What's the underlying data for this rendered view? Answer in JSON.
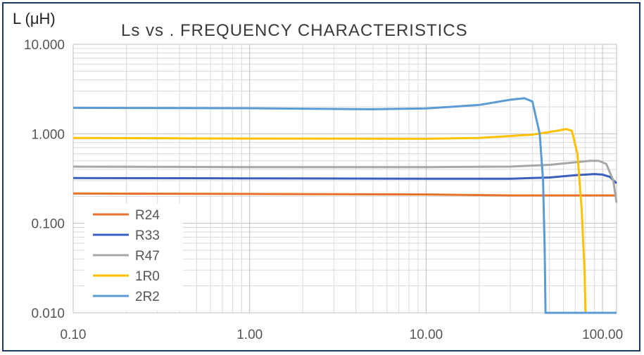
{
  "chart_data": {
    "type": "line",
    "title": "Ls vs . FREQUENCY CHARACTERISTICS",
    "ylabel": "L (μH)",
    "xlabel": "",
    "x_scale": "log",
    "y_scale": "log",
    "xlim": [
      0.1,
      120
    ],
    "ylim": [
      0.01,
      10
    ],
    "x_ticks": [
      "0.10",
      "1.00",
      "10.00",
      "100.00"
    ],
    "y_ticks": [
      "10.000",
      "1.000",
      "0.100",
      "0.010"
    ],
    "grid": true,
    "legend_position": "bottom-left",
    "series": [
      {
        "name": "R24",
        "color": "#e8722c",
        "points": [
          [
            0.1,
            0.215
          ],
          [
            1,
            0.213
          ],
          [
            10,
            0.21
          ],
          [
            30,
            0.205
          ],
          [
            60,
            0.205
          ],
          [
            100,
            0.205
          ],
          [
            120,
            0.205
          ]
        ]
      },
      {
        "name": "R33",
        "color": "#3a5fbf",
        "points": [
          [
            0.1,
            0.32
          ],
          [
            1,
            0.318
          ],
          [
            10,
            0.315
          ],
          [
            30,
            0.315
          ],
          [
            50,
            0.325
          ],
          [
            70,
            0.345
          ],
          [
            90,
            0.355
          ],
          [
            100,
            0.35
          ],
          [
            110,
            0.33
          ],
          [
            120,
            0.28
          ]
        ]
      },
      {
        "name": "R47",
        "color": "#a6a6a6",
        "points": [
          [
            0.1,
            0.43
          ],
          [
            1,
            0.425
          ],
          [
            10,
            0.425
          ],
          [
            30,
            0.43
          ],
          [
            50,
            0.45
          ],
          [
            70,
            0.48
          ],
          [
            85,
            0.5
          ],
          [
            95,
            0.5
          ],
          [
            105,
            0.46
          ],
          [
            115,
            0.3
          ],
          [
            120,
            0.17
          ]
        ]
      },
      {
        "name": "1R0",
        "color": "#ffc000",
        "points": [
          [
            0.1,
            0.9
          ],
          [
            1,
            0.885
          ],
          [
            10,
            0.88
          ],
          [
            20,
            0.9
          ],
          [
            40,
            0.98
          ],
          [
            55,
            1.08
          ],
          [
            62,
            1.13
          ],
          [
            67,
            1.08
          ],
          [
            72,
            0.6
          ],
          [
            76,
            0.15
          ],
          [
            79,
            0.03
          ],
          [
            80,
            0.01
          ],
          [
            120,
            0.01
          ]
        ]
      },
      {
        "name": "2R2",
        "color": "#5b9bd5",
        "points": [
          [
            0.1,
            1.95
          ],
          [
            1,
            1.93
          ],
          [
            5,
            1.88
          ],
          [
            10,
            1.92
          ],
          [
            20,
            2.1
          ],
          [
            30,
            2.4
          ],
          [
            36,
            2.5
          ],
          [
            40,
            2.3
          ],
          [
            44,
            1.0
          ],
          [
            46,
            0.3
          ],
          [
            47,
            0.05
          ],
          [
            47.5,
            0.01
          ],
          [
            120,
            0.01
          ]
        ]
      }
    ]
  }
}
